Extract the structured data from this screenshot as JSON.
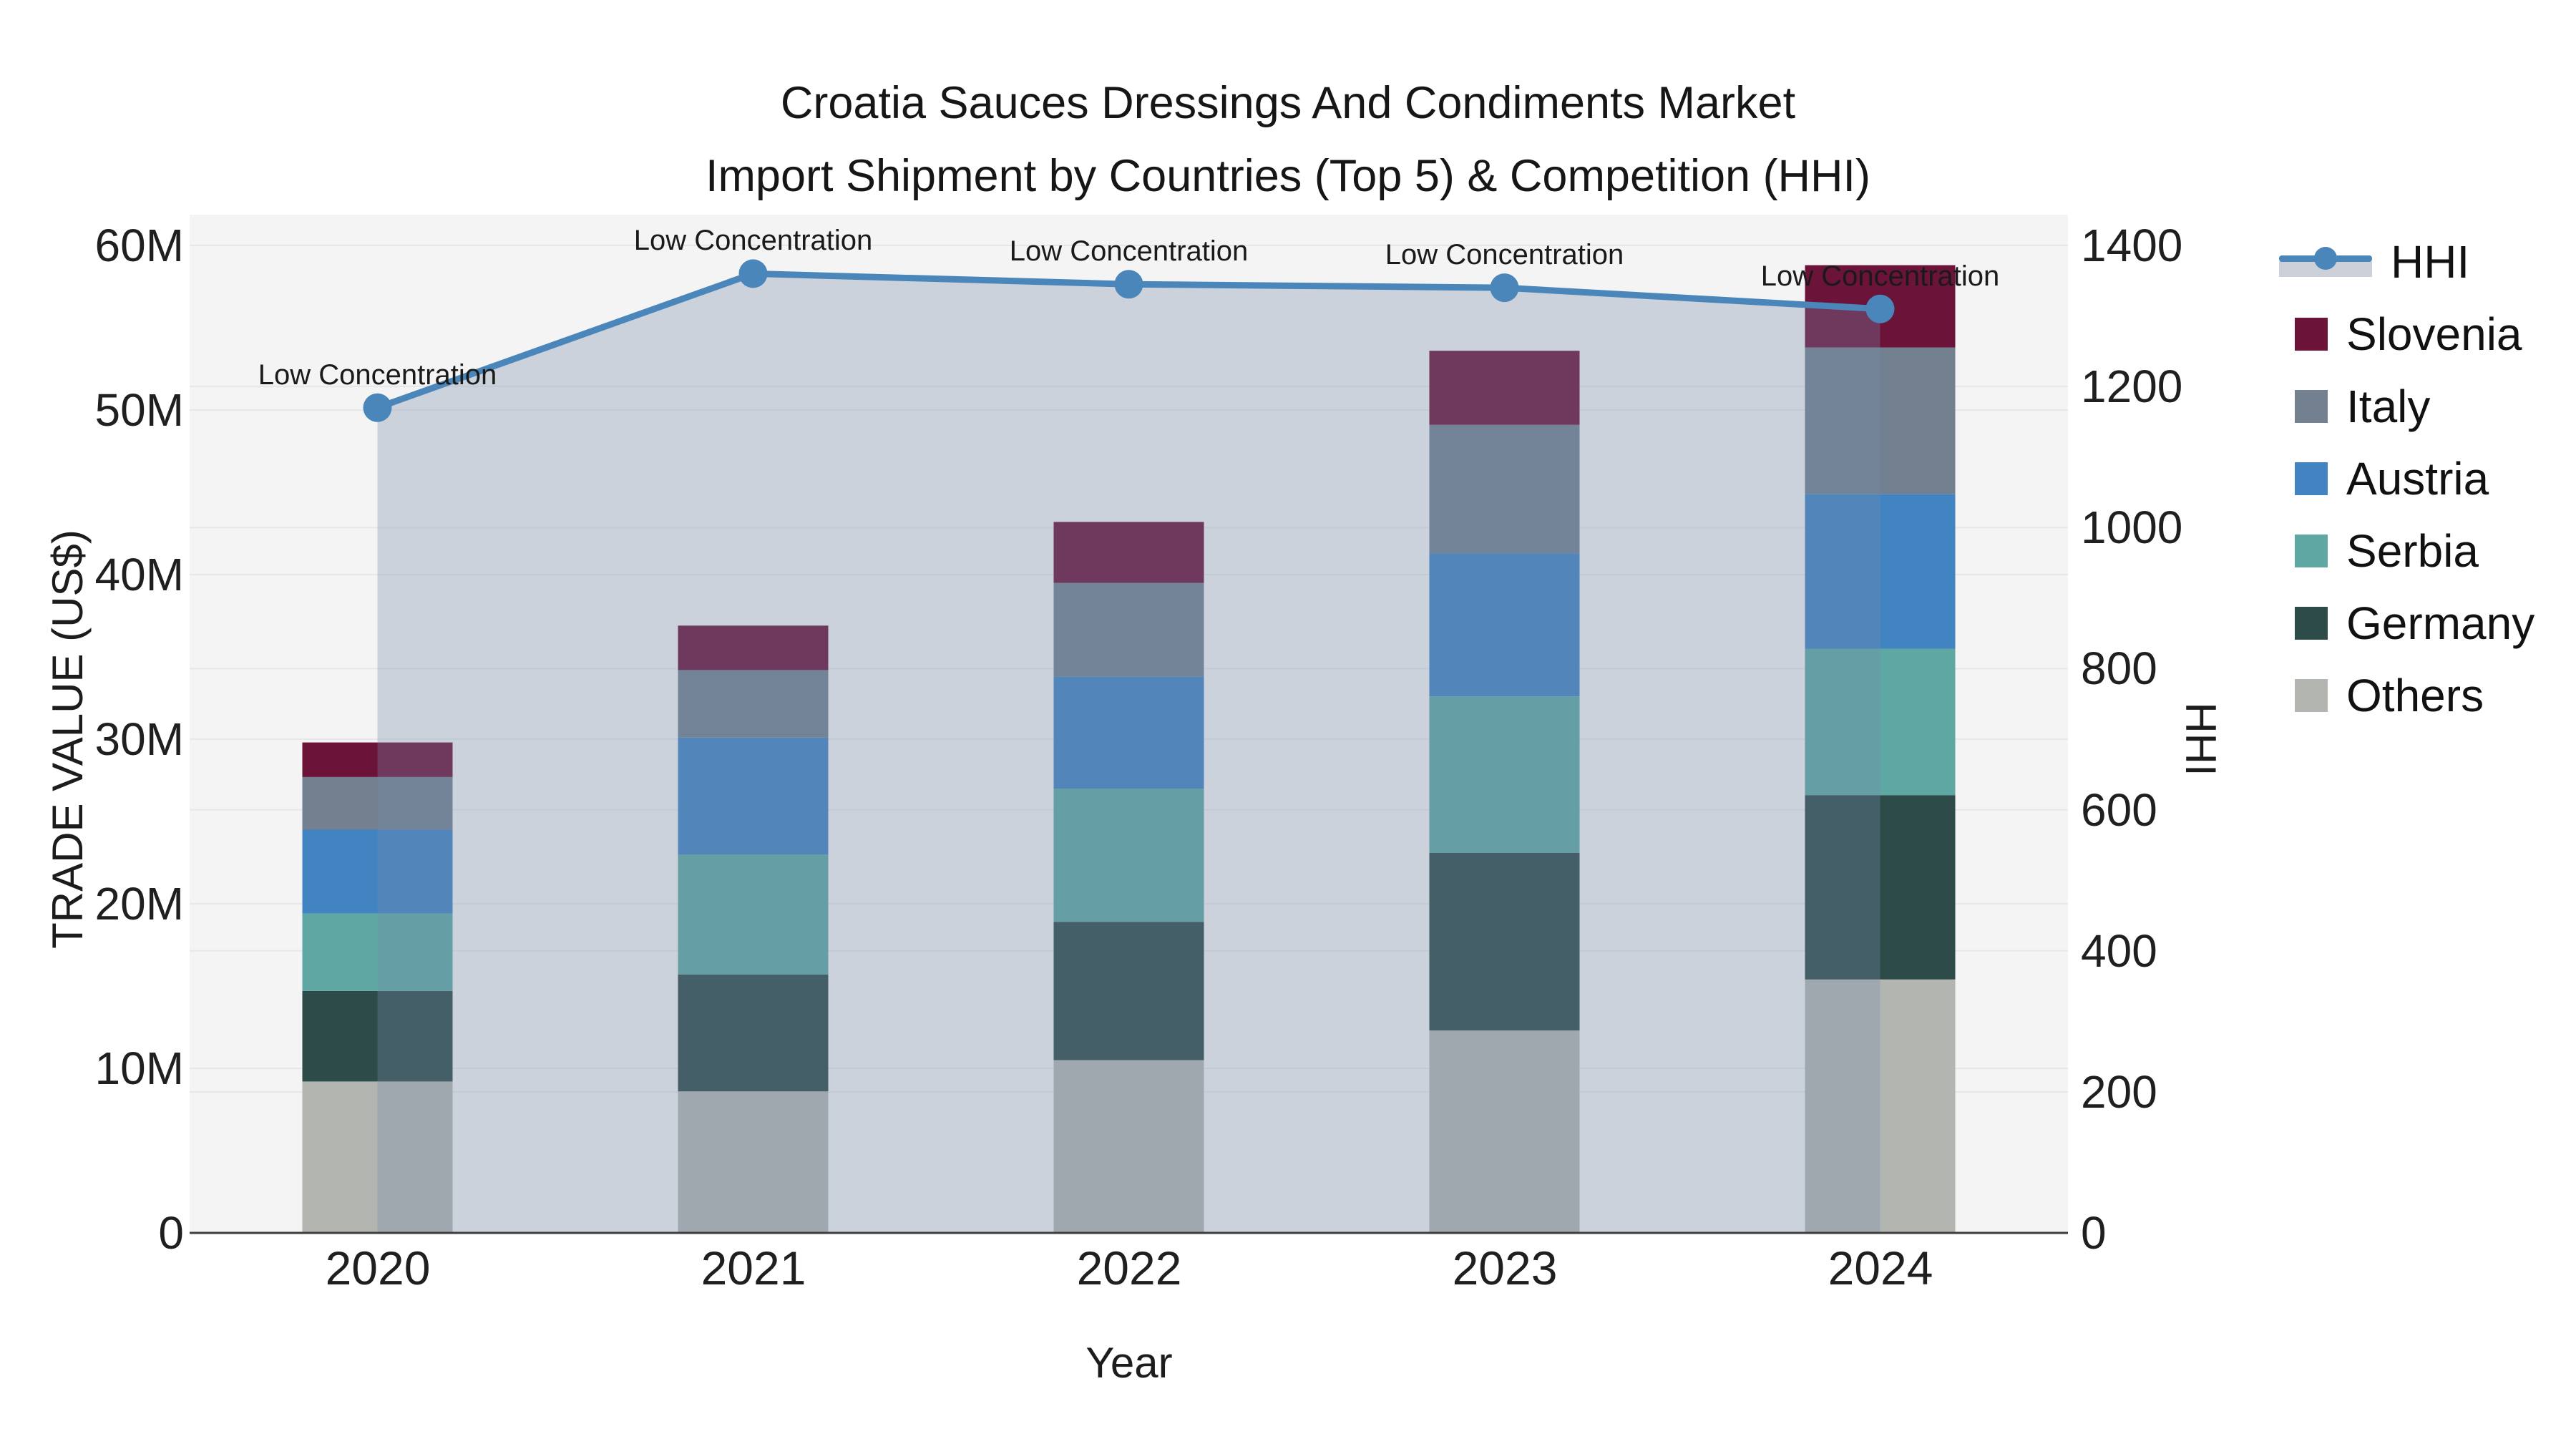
{
  "title": {
    "line1": "Croatia Sauces Dressings And Condiments Market",
    "line2": "Import Shipment by Countries (Top 5) & Competition (HHI)"
  },
  "legend": {
    "items": [
      {
        "label": "HHI",
        "color": "#4a86ba",
        "type": "line"
      },
      {
        "label": "Slovenia",
        "color": "#6b1339",
        "type": "swatch"
      },
      {
        "label": "Italy",
        "color": "#73808f",
        "type": "swatch"
      },
      {
        "label": "Austria",
        "color": "#4284c2",
        "type": "swatch"
      },
      {
        "label": "Serbia",
        "color": "#5fa7a3",
        "type": "swatch"
      },
      {
        "label": "Germany",
        "color": "#2d4b48",
        "type": "swatch"
      },
      {
        "label": "Others",
        "color": "#b3b5b0",
        "type": "swatch"
      }
    ]
  },
  "chart_data": {
    "type": "bar",
    "subtype": "stacked-bars-with-line-area-overlay",
    "categories": [
      "2020",
      "2021",
      "2022",
      "2023",
      "2024"
    ],
    "bar_value_unit": "US$ millions",
    "stack_order_bottom_to_top": [
      "Others",
      "Germany",
      "Serbia",
      "Austria",
      "Italy",
      "Slovenia"
    ],
    "series": [
      {
        "name": "Others",
        "color": "#b3b5b0",
        "values_musd": [
          9.2,
          8.6,
          10.5,
          12.3,
          15.4
        ]
      },
      {
        "name": "Germany",
        "color": "#2d4b48",
        "values_musd": [
          5.5,
          7.1,
          8.4,
          10.8,
          11.2
        ]
      },
      {
        "name": "Serbia",
        "color": "#5fa7a3",
        "values_musd": [
          4.7,
          7.3,
          8.1,
          9.5,
          8.9
        ]
      },
      {
        "name": "Austria",
        "color": "#4284c2",
        "values_musd": [
          5.1,
          7.1,
          6.8,
          8.7,
          9.4
        ]
      },
      {
        "name": "Italy",
        "color": "#73808f",
        "values_musd": [
          3.2,
          4.1,
          5.7,
          7.8,
          8.9
        ]
      },
      {
        "name": "Slovenia",
        "color": "#6b1339",
        "values_musd": [
          2.1,
          2.7,
          3.7,
          4.5,
          5.0
        ]
      }
    ],
    "stack_totals_musd": [
      29.8,
      36.9,
      43.2,
      53.7,
      58.8
    ],
    "line": {
      "name": "HHI",
      "color": "#4a86ba",
      "area_fill": "rgba(118,140,172,0.32)",
      "values": [
        1170,
        1360,
        1345,
        1340,
        1310
      ],
      "axis": "right"
    },
    "annotations": [
      "Low Concentration",
      "Low Concentration",
      "Low Concentration",
      "Low Concentration",
      "Low Concentration"
    ],
    "x_axis": {
      "label": "Year"
    },
    "left_axis": {
      "label": "TRADE VALUE (US$)",
      "ticks": [
        "60M",
        "50M",
        "40M",
        "30M",
        "20M",
        "10M",
        "0"
      ],
      "range": [
        0,
        60000000
      ]
    },
    "right_axis": {
      "label": "HHI",
      "ticks": [
        "1400",
        "1200",
        "1000",
        "800",
        "600",
        "400",
        "200",
        "0"
      ],
      "range": [
        0,
        1400
      ]
    },
    "grid": true,
    "legend_position": "right",
    "plot_background": "#f4f4f4",
    "gridline_color": "#e6e7ea",
    "axis_line_color": "#3d3d3d"
  }
}
